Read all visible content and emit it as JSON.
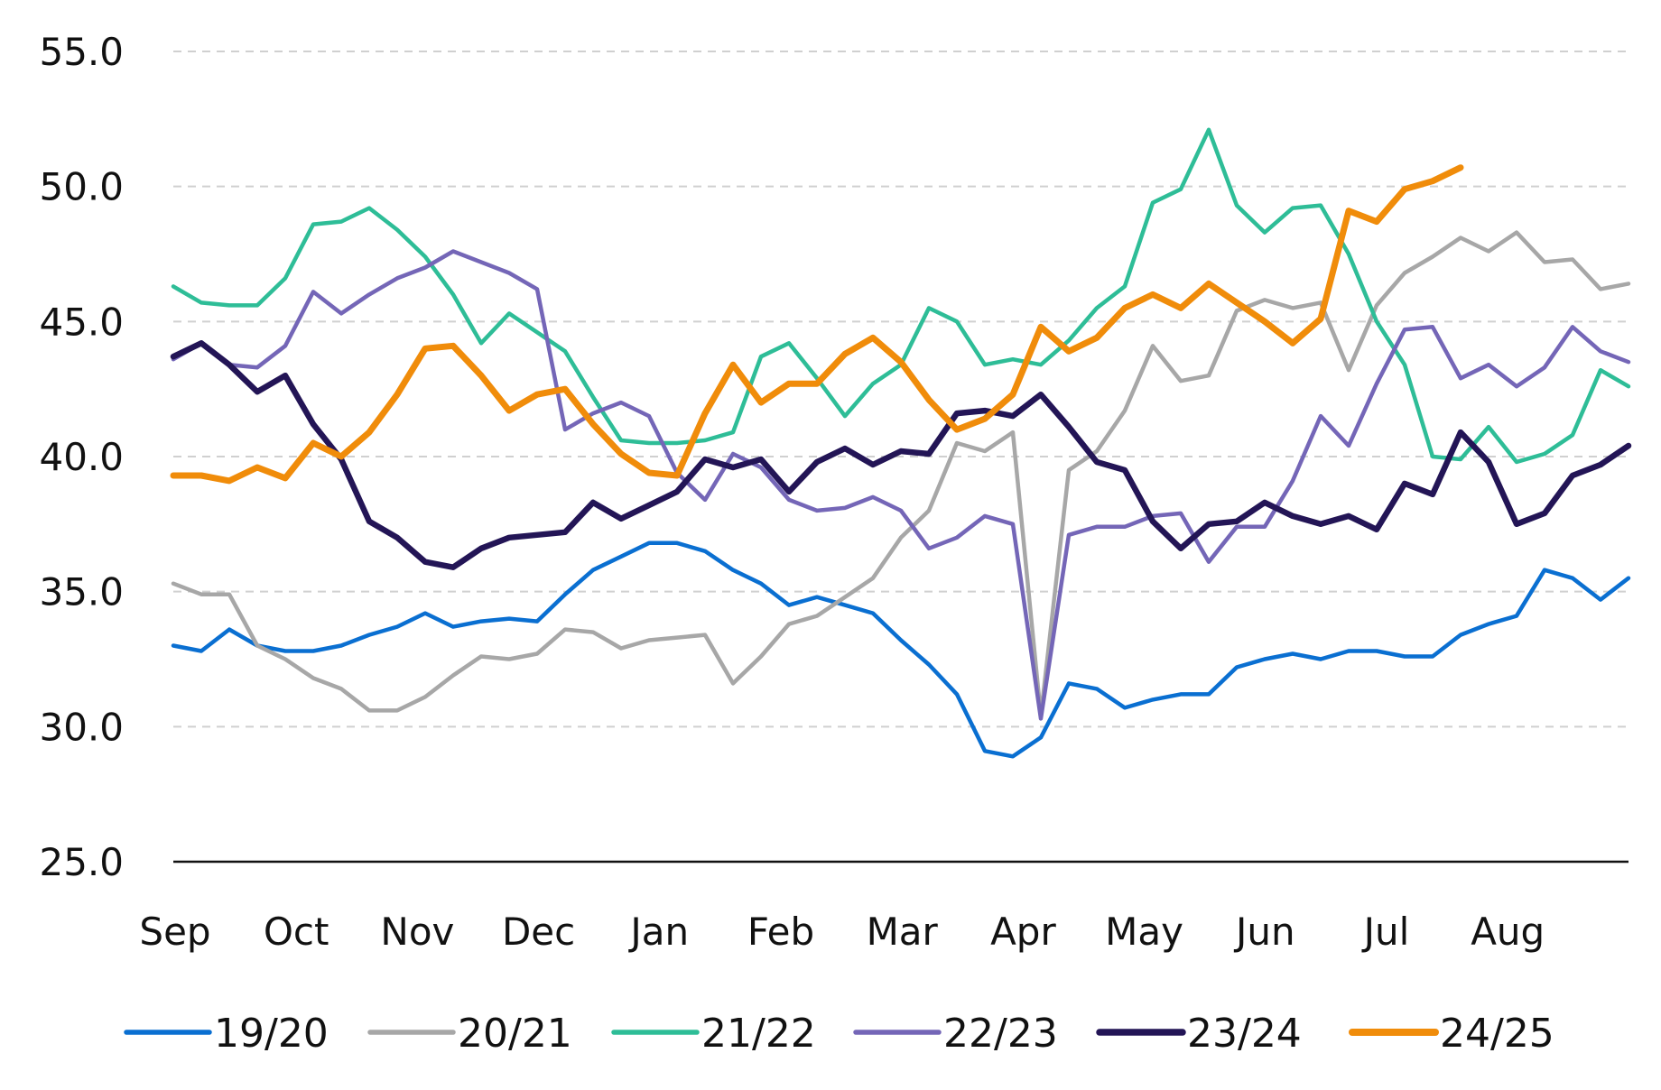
{
  "chart_data": {
    "type": "line",
    "title": "",
    "xlabel": "",
    "ylabel": "",
    "ylim": [
      25,
      55
    ],
    "y_ticks": [
      "55.0",
      "50.0",
      "45.0",
      "40.0",
      "35.0",
      "30.0",
      "25.0"
    ],
    "x_ticks": [
      "Sep",
      "Oct",
      "Nov",
      "Dec",
      "Jan",
      "Feb",
      "Mar",
      "Apr",
      "May",
      "Jun",
      "Jul",
      "Aug"
    ],
    "x_range": [
      1,
      53
    ],
    "grid": "horizontal dashed",
    "legend_position": "bottom",
    "series": [
      {
        "name": "19/20",
        "color": "#0a6fd1",
        "values": [
          33.0,
          32.8,
          33.6,
          33.0,
          32.8,
          32.8,
          33.0,
          33.4,
          33.7,
          34.2,
          33.7,
          33.9,
          34.0,
          33.9,
          34.9,
          35.8,
          36.3,
          36.8,
          36.8,
          36.5,
          35.8,
          35.3,
          34.5,
          34.8,
          34.5,
          34.2,
          33.2,
          32.3,
          31.2,
          29.1,
          28.9,
          29.6,
          31.6,
          31.4,
          30.7,
          31.0,
          31.2,
          31.2,
          32.2,
          32.5,
          32.7,
          32.5,
          32.8,
          32.8,
          32.6,
          32.6,
          33.4,
          33.8,
          34.1,
          35.8,
          35.5,
          34.7,
          35.5
        ]
      },
      {
        "name": "20/21",
        "color": "#a7a7a7",
        "values": [
          35.3,
          34.9,
          34.9,
          33.0,
          32.5,
          31.8,
          31.4,
          30.6,
          30.6,
          31.1,
          31.9,
          32.6,
          32.5,
          32.7,
          33.6,
          33.5,
          32.9,
          33.2,
          33.3,
          33.4,
          31.6,
          32.6,
          33.8,
          34.1,
          34.8,
          35.5,
          37.0,
          38.0,
          40.5,
          40.2,
          40.9,
          30.4,
          39.5,
          40.2,
          41.7,
          44.1,
          42.8,
          43.0,
          45.4,
          45.8,
          45.5,
          45.7,
          43.2,
          45.6,
          46.8,
          47.4,
          48.1,
          47.6,
          48.3,
          47.2,
          47.3,
          46.2,
          46.4
        ]
      },
      {
        "name": "21/22",
        "color": "#2ebd97",
        "values": [
          46.3,
          45.7,
          45.6,
          45.6,
          46.6,
          48.6,
          48.7,
          49.2,
          48.4,
          47.4,
          46.0,
          44.2,
          45.3,
          44.6,
          43.9,
          42.2,
          40.6,
          40.5,
          40.5,
          40.6,
          40.9,
          43.7,
          44.2,
          42.9,
          41.5,
          42.7,
          43.4,
          45.5,
          45.0,
          43.4,
          43.6,
          43.4,
          44.3,
          45.5,
          46.3,
          49.4,
          49.9,
          52.1,
          49.3,
          48.3,
          49.2,
          49.3,
          47.5,
          45.0,
          43.4,
          40.0,
          39.9,
          41.1,
          39.8,
          40.1,
          40.8,
          43.2,
          42.6
        ]
      },
      {
        "name": "22/23",
        "color": "#7466b7",
        "values": [
          43.6,
          44.2,
          43.4,
          43.3,
          44.1,
          46.1,
          45.3,
          46.0,
          46.6,
          47.0,
          47.6,
          47.2,
          46.8,
          46.2,
          41.0,
          41.6,
          42.0,
          41.5,
          39.4,
          38.4,
          40.1,
          39.6,
          38.4,
          38.0,
          38.1,
          38.5,
          38.0,
          36.6,
          37.0,
          37.8,
          37.5,
          30.3,
          37.1,
          37.4,
          37.4,
          37.8,
          37.9,
          36.1,
          37.4,
          37.4,
          39.1,
          41.5,
          40.4,
          42.7,
          44.7,
          44.8,
          42.9,
          43.4,
          42.6,
          43.3,
          44.8,
          43.9,
          43.5
        ]
      },
      {
        "name": "23/24",
        "color": "#231556",
        "values": [
          43.7,
          44.2,
          43.4,
          42.4,
          43.0,
          41.2,
          39.9,
          37.6,
          37.0,
          36.1,
          35.9,
          36.6,
          37.0,
          37.1,
          37.2,
          38.3,
          37.7,
          38.2,
          38.7,
          39.9,
          39.6,
          39.9,
          38.7,
          39.8,
          40.3,
          39.7,
          40.2,
          40.1,
          41.6,
          41.7,
          41.5,
          42.3,
          41.1,
          39.8,
          39.5,
          37.6,
          36.6,
          37.5,
          37.6,
          38.3,
          37.8,
          37.5,
          37.8,
          37.3,
          39.0,
          38.6,
          40.9,
          39.8,
          37.5,
          37.9,
          39.3,
          39.7,
          40.4
        ]
      },
      {
        "name": "24/25",
        "color": "#f08c0a",
        "values": [
          39.3,
          39.3,
          39.1,
          39.6,
          39.2,
          40.5,
          40.0,
          40.9,
          42.3,
          44.0,
          44.1,
          43.0,
          41.7,
          42.3,
          42.5,
          41.2,
          40.1,
          39.4,
          39.3,
          41.6,
          43.4,
          42.0,
          42.7,
          42.7,
          43.8,
          44.4,
          43.5,
          42.1,
          41.0,
          41.4,
          42.3,
          44.8,
          43.9,
          44.4,
          45.5,
          46.0,
          45.5,
          46.4,
          45.7,
          45.0,
          44.2,
          45.1,
          49.1,
          48.7,
          49.9,
          50.2,
          50.7
        ]
      }
    ]
  }
}
